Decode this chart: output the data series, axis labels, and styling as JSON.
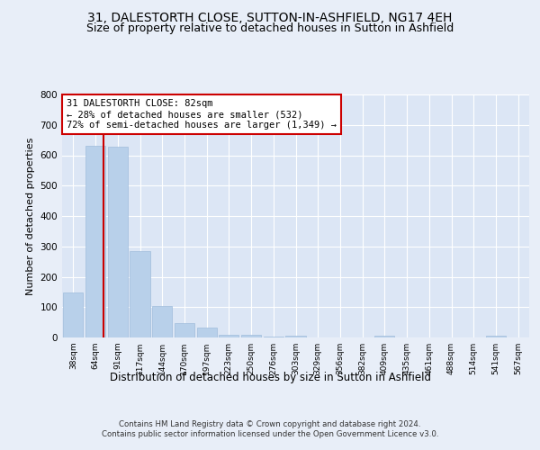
{
  "title1": "31, DALESTORTH CLOSE, SUTTON-IN-ASHFIELD, NG17 4EH",
  "title2": "Size of property relative to detached houses in Sutton in Ashfield",
  "xlabel": "Distribution of detached houses by size in Sutton in Ashfield",
  "ylabel": "Number of detached properties",
  "footnote": "Contains HM Land Registry data © Crown copyright and database right 2024.\nContains public sector information licensed under the Open Government Licence v3.0.",
  "bar_labels": [
    "38sqm",
    "64sqm",
    "91sqm",
    "117sqm",
    "144sqm",
    "170sqm",
    "197sqm",
    "223sqm",
    "250sqm",
    "276sqm",
    "303sqm",
    "329sqm",
    "356sqm",
    "382sqm",
    "409sqm",
    "435sqm",
    "461sqm",
    "488sqm",
    "514sqm",
    "541sqm",
    "567sqm"
  ],
  "bar_values": [
    148,
    632,
    627,
    285,
    103,
    46,
    32,
    10,
    10,
    4,
    7,
    0,
    0,
    0,
    5,
    0,
    0,
    0,
    0,
    5,
    0
  ],
  "bar_color": "#b8d0ea",
  "bar_edge_color": "#a0bcdb",
  "property_label": "31 DALESTORTH CLOSE: 82sqm",
  "annotation_line1": "← 28% of detached houses are smaller (532)",
  "annotation_line2": "72% of semi-detached houses are larger (1,349) →",
  "vline_color": "#cc0000",
  "vline_x": 1.35,
  "annotation_box_color": "#ffffff",
  "annotation_box_edgecolor": "#cc0000",
  "ylim": [
    0,
    800
  ],
  "yticks": [
    0,
    100,
    200,
    300,
    400,
    500,
    600,
    700,
    800
  ],
  "fig_bg_color": "#e8eef8",
  "plot_bg_color": "#dce6f5",
  "title1_fontsize": 10,
  "title2_fontsize": 9,
  "xlabel_fontsize": 8.5,
  "ylabel_fontsize": 8
}
